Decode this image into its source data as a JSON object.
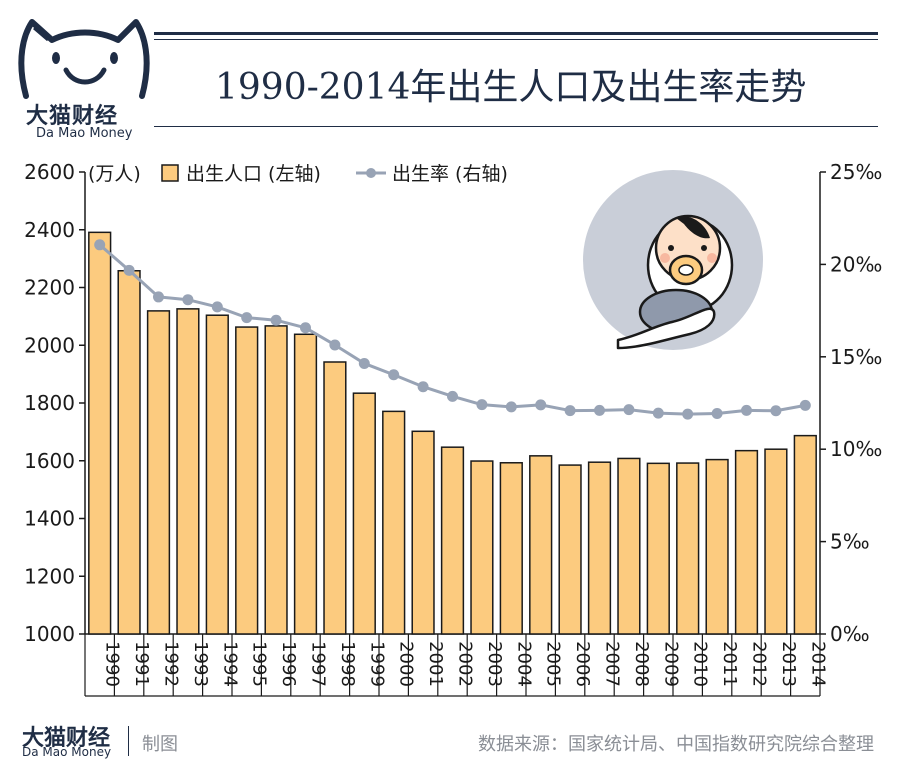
{
  "brand": {
    "name_cn": "大猫财经",
    "name_en": "Da Mao Money"
  },
  "title": "1990-2014年出生人口及出生率走势",
  "footer": {
    "maker": "制图",
    "source": "数据来源：国家统计局、中国指数研究院综合整理"
  },
  "colors": {
    "navy": "#1f2d45",
    "bar_fill": "#fccb7f",
    "bar_stroke": "#1a1a1a",
    "line": "#98a3b5",
    "circle_bg": "#c9ced8"
  },
  "chart_data": {
    "type": "bar+line",
    "unit_left": "(万人)",
    "legend": [
      "出生人口 (左轴)",
      "出生率 (右轴)"
    ],
    "legend_position": "top-left",
    "categories": [
      "1990",
      "1991",
      "1992",
      "1993",
      "1994",
      "1995",
      "1996",
      "1997",
      "1998",
      "1999",
      "2000",
      "2001",
      "2002",
      "2003",
      "2004",
      "2005",
      "2006",
      "2007",
      "2008",
      "2009",
      "2010",
      "2011",
      "2012",
      "2013",
      "2014"
    ],
    "series": [
      {
        "name": "出生人口 (左轴)",
        "type": "bar",
        "axis": "left",
        "values": [
          2391,
          2258,
          2119,
          2126,
          2104,
          2063,
          2067,
          2038,
          1942,
          1834,
          1771,
          1702,
          1647,
          1599,
          1593,
          1617,
          1585,
          1595,
          1608,
          1591,
          1592,
          1604,
          1635,
          1640,
          1687
        ]
      },
      {
        "name": "出生率 (右轴)",
        "type": "line",
        "axis": "right",
        "values": [
          21.06,
          19.68,
          18.24,
          18.09,
          17.7,
          17.12,
          16.98,
          16.57,
          15.64,
          14.64,
          14.03,
          13.38,
          12.86,
          12.41,
          12.29,
          12.4,
          12.09,
          12.1,
          12.14,
          11.95,
          11.9,
          11.93,
          12.1,
          12.08,
          12.37
        ]
      }
    ],
    "y_left": {
      "min": 1000,
      "max": 2600,
      "ticks": [
        "1000",
        "1200",
        "1400",
        "1600",
        "1800",
        "2000",
        "2200",
        "2400",
        "2600"
      ]
    },
    "y_right": {
      "min": 0,
      "max": 25,
      "ticks": [
        "0‰",
        "5‰",
        "10‰",
        "15‰",
        "20‰",
        "25‰"
      ]
    },
    "grid": false
  }
}
